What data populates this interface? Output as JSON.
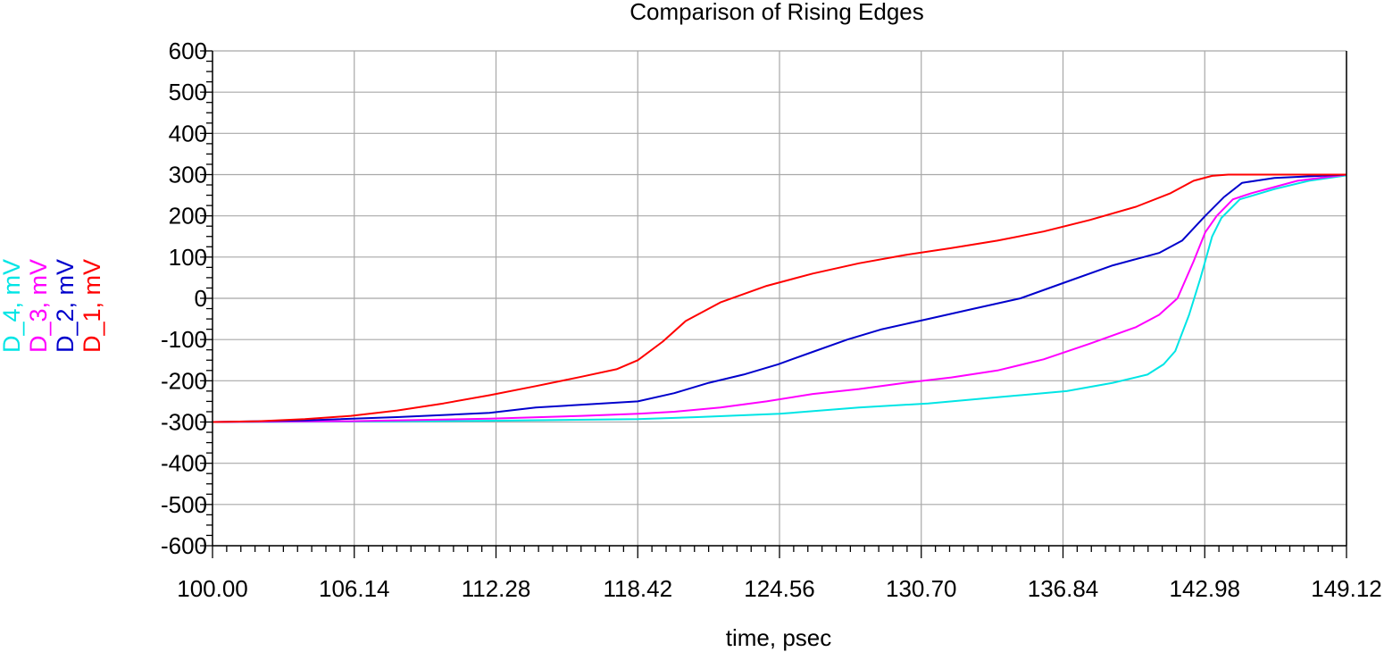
{
  "chart_data": {
    "type": "line",
    "title": "Comparison of Rising Edges",
    "xlabel": "time, psec",
    "ylabel": "",
    "xlim": [
      100.0,
      149.12
    ],
    "ylim": [
      -600,
      600
    ],
    "grid": true,
    "x_ticks": [
      "100.00",
      "106.14",
      "112.28",
      "118.42",
      "124.56",
      "130.70",
      "136.84",
      "142.98",
      "149.12"
    ],
    "y_ticks": [
      "600",
      "500",
      "400",
      "300",
      "200",
      "100",
      "0",
      "-100",
      "-200",
      "-300",
      "-400",
      "-500",
      "-600"
    ],
    "legend_position": "left, rotated",
    "series": [
      {
        "name": "D_1, mV",
        "color": "#ff0000",
        "points": [
          [
            100,
            -300
          ],
          [
            102,
            -298
          ],
          [
            104,
            -293
          ],
          [
            106,
            -285
          ],
          [
            108,
            -272
          ],
          [
            110,
            -255
          ],
          [
            112,
            -235
          ],
          [
            114,
            -213
          ],
          [
            116,
            -190
          ],
          [
            117.5,
            -172
          ],
          [
            118.42,
            -150
          ],
          [
            119.5,
            -105
          ],
          [
            120.5,
            -55
          ],
          [
            122,
            -10
          ],
          [
            124,
            30
          ],
          [
            126,
            60
          ],
          [
            128,
            85
          ],
          [
            130,
            105
          ],
          [
            132,
            122
          ],
          [
            134,
            140
          ],
          [
            136,
            162
          ],
          [
            138,
            190
          ],
          [
            140,
            222
          ],
          [
            141.5,
            255
          ],
          [
            142.5,
            285
          ],
          [
            143.3,
            297
          ],
          [
            144,
            300
          ],
          [
            149.12,
            300
          ]
        ]
      },
      {
        "name": "D_2, mV",
        "color": "#0000cc",
        "points": [
          [
            100,
            -300
          ],
          [
            104,
            -296
          ],
          [
            108,
            -288
          ],
          [
            112,
            -278
          ],
          [
            114,
            -265
          ],
          [
            116,
            -258
          ],
          [
            118.42,
            -250
          ],
          [
            120,
            -230
          ],
          [
            121.5,
            -205
          ],
          [
            123,
            -185
          ],
          [
            124.5,
            -160
          ],
          [
            126,
            -130
          ],
          [
            127.5,
            -100
          ],
          [
            129,
            -75
          ],
          [
            131,
            -50
          ],
          [
            133,
            -25
          ],
          [
            135,
            0
          ],
          [
            137,
            40
          ],
          [
            139,
            80
          ],
          [
            141,
            110
          ],
          [
            142,
            140
          ],
          [
            143,
            200
          ],
          [
            143.8,
            245
          ],
          [
            144.6,
            280
          ],
          [
            146,
            292
          ],
          [
            149.12,
            300
          ]
        ]
      },
      {
        "name": "D_3, mV",
        "color": "#ff00ff",
        "points": [
          [
            100,
            -300
          ],
          [
            106,
            -298
          ],
          [
            112,
            -292
          ],
          [
            116,
            -285
          ],
          [
            118.42,
            -280
          ],
          [
            120,
            -275
          ],
          [
            122,
            -265
          ],
          [
            124,
            -250
          ],
          [
            126,
            -232
          ],
          [
            128,
            -220
          ],
          [
            130,
            -205
          ],
          [
            132,
            -192
          ],
          [
            134,
            -175
          ],
          [
            136,
            -148
          ],
          [
            138,
            -110
          ],
          [
            140,
            -70
          ],
          [
            141,
            -40
          ],
          [
            141.8,
            0
          ],
          [
            142.5,
            90
          ],
          [
            143,
            160
          ],
          [
            143.5,
            200
          ],
          [
            144.2,
            240
          ],
          [
            145,
            255
          ],
          [
            146,
            270
          ],
          [
            147,
            285
          ],
          [
            149.12,
            300
          ]
        ]
      },
      {
        "name": "D_4, mV",
        "color": "#00e5e5",
        "points": [
          [
            100,
            -300
          ],
          [
            106,
            -299
          ],
          [
            112,
            -297
          ],
          [
            118.42,
            -293
          ],
          [
            121,
            -288
          ],
          [
            124.56,
            -280
          ],
          [
            128,
            -265
          ],
          [
            131,
            -255
          ],
          [
            134,
            -240
          ],
          [
            137,
            -225
          ],
          [
            139,
            -205
          ],
          [
            140.5,
            -185
          ],
          [
            141.2,
            -160
          ],
          [
            141.7,
            -128
          ],
          [
            142.3,
            -40
          ],
          [
            142.8,
            50
          ],
          [
            143.3,
            150
          ],
          [
            143.7,
            195
          ],
          [
            144.5,
            240
          ],
          [
            146,
            265
          ],
          [
            147.5,
            285
          ],
          [
            149.12,
            298
          ]
        ]
      }
    ]
  }
}
